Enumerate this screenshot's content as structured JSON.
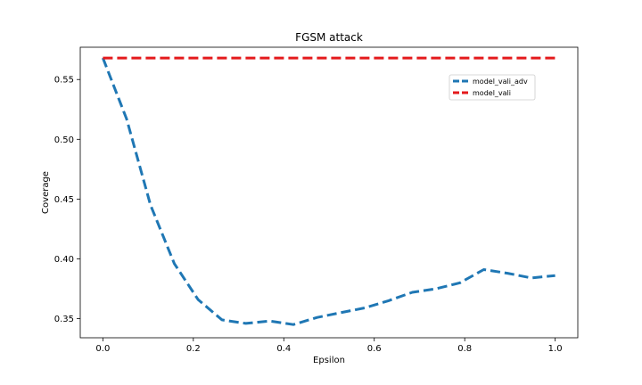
{
  "chart_data": {
    "type": "line",
    "title": "FGSM attack",
    "xlabel": "Epsilon",
    "ylabel": "Coverage",
    "xlim": [
      -0.05,
      1.05
    ],
    "ylim": [
      0.334,
      0.577
    ],
    "xticks": [
      0.0,
      0.2,
      0.4,
      0.6,
      0.8,
      1.0
    ],
    "xtick_labels": [
      "0.0",
      "0.2",
      "0.4",
      "0.6",
      "0.8",
      "1.0"
    ],
    "yticks": [
      0.35,
      0.4,
      0.45,
      0.5,
      0.55
    ],
    "ytick_labels": [
      "0.35",
      "0.40",
      "0.45",
      "0.50",
      "0.55"
    ],
    "grid": false,
    "legend_position": "upper-right",
    "series": [
      {
        "name": "model_vali_adv",
        "color": "#1f77b4",
        "style": "dashed",
        "x": [
          0.0,
          0.0526,
          0.1053,
          0.1579,
          0.2105,
          0.2632,
          0.3158,
          0.3684,
          0.4211,
          0.4737,
          0.5263,
          0.5789,
          0.6316,
          0.6842,
          0.7368,
          0.7895,
          0.8421,
          0.8947,
          0.9474,
          1.0
        ],
        "y": [
          0.568,
          0.517,
          0.445,
          0.396,
          0.366,
          0.349,
          0.346,
          0.348,
          0.345,
          0.351,
          0.355,
          0.359,
          0.365,
          0.372,
          0.375,
          0.38,
          0.391,
          0.388,
          0.384,
          0.386
        ]
      },
      {
        "name": "model_vali",
        "color": "#e41a1c",
        "style": "dashed",
        "x": [
          0.0,
          0.0526,
          0.1053,
          0.1579,
          0.2105,
          0.2632,
          0.3158,
          0.3684,
          0.4211,
          0.4737,
          0.5263,
          0.5789,
          0.6316,
          0.6842,
          0.7368,
          0.7895,
          0.8421,
          0.8947,
          0.9474,
          1.0
        ],
        "y": [
          0.568,
          0.568,
          0.568,
          0.568,
          0.568,
          0.568,
          0.568,
          0.568,
          0.568,
          0.568,
          0.568,
          0.568,
          0.568,
          0.568,
          0.568,
          0.568,
          0.568,
          0.568,
          0.568,
          0.568
        ]
      }
    ]
  }
}
